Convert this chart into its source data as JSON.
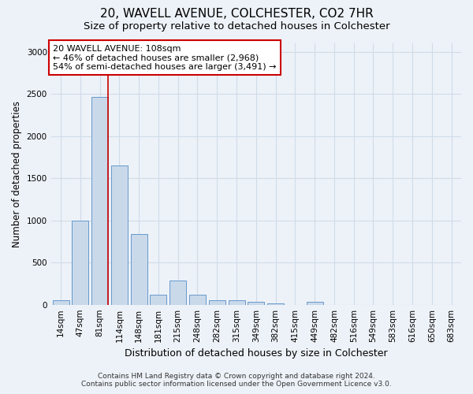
{
  "title": "20, WAVELL AVENUE, COLCHESTER, CO2 7HR",
  "subtitle": "Size of property relative to detached houses in Colchester",
  "xlabel": "Distribution of detached houses by size in Colchester",
  "ylabel": "Number of detached properties",
  "categories": [
    "14sqm",
    "47sqm",
    "81sqm",
    "114sqm",
    "148sqm",
    "181sqm",
    "215sqm",
    "248sqm",
    "282sqm",
    "315sqm",
    "349sqm",
    "382sqm",
    "415sqm",
    "449sqm",
    "482sqm",
    "516sqm",
    "549sqm",
    "583sqm",
    "616sqm",
    "650sqm",
    "683sqm"
  ],
  "values": [
    55,
    1000,
    2460,
    1650,
    840,
    115,
    290,
    115,
    50,
    50,
    35,
    20,
    0,
    30,
    0,
    0,
    0,
    0,
    0,
    0,
    0
  ],
  "bar_color": "#c9d9ea",
  "bar_edge_color": "#6699cc",
  "grid_color": "#d0dce8",
  "background_color": "#edf2f8",
  "vline_color": "#cc0000",
  "vline_x": 2.42,
  "annotation_label": "20 WAVELL AVENUE: 108sqm",
  "annotation_line1": "← 46% of detached houses are smaller (2,968)",
  "annotation_line2": "54% of semi-detached houses are larger (3,491) →",
  "annotation_box_color": "#ffffff",
  "annotation_box_edge": "#cc0000",
  "ylim": [
    0,
    3100
  ],
  "yticks": [
    0,
    500,
    1000,
    1500,
    2000,
    2500,
    3000
  ],
  "footer1": "Contains HM Land Registry data © Crown copyright and database right 2024.",
  "footer2": "Contains public sector information licensed under the Open Government Licence v3.0.",
  "title_fontsize": 11,
  "subtitle_fontsize": 9.5,
  "xlabel_fontsize": 9,
  "ylabel_fontsize": 8.5,
  "tick_fontsize": 7.5,
  "annotation_fontsize": 8,
  "footer_fontsize": 6.5
}
